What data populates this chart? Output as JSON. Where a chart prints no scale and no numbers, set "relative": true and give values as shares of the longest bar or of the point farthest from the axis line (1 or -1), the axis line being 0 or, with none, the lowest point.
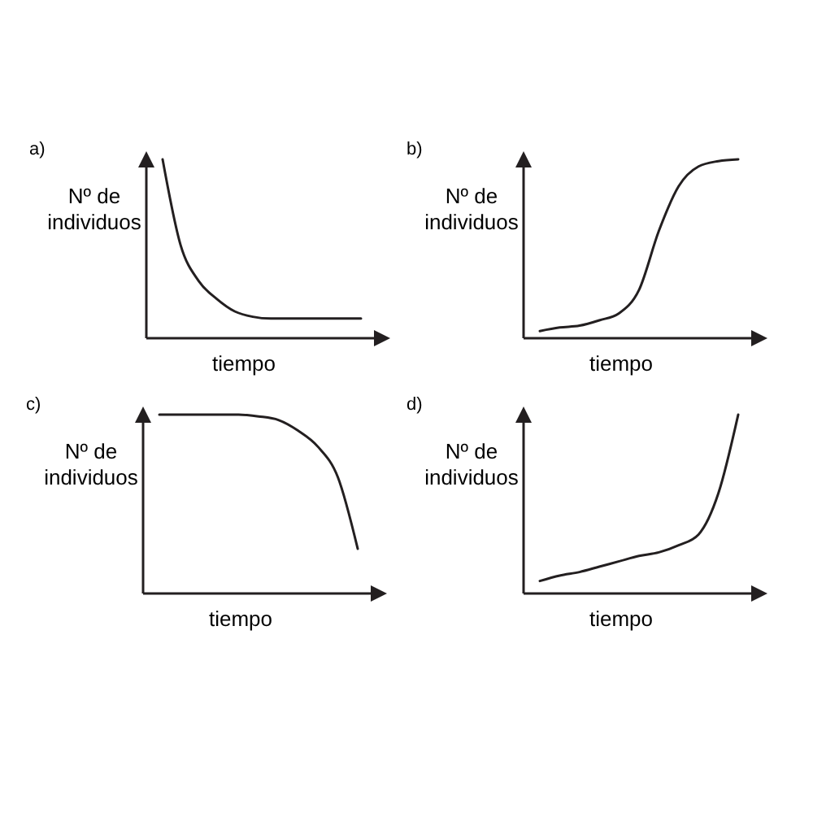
{
  "chart_data": [
    {
      "type": "line",
      "title": "a)",
      "ylabel": "Nº de individuos",
      "xlabel": "tiempo",
      "relative": true,
      "categories": [
        null,
        null,
        null,
        null,
        null,
        null,
        null,
        null,
        null,
        null,
        null,
        null
      ],
      "series": [
        {
          "color": "#231f20",
          "values": [
            1,
            0.52,
            0.32,
            0.22,
            0.15,
            0.12,
            0.11,
            0.11,
            0.11,
            0.11,
            0.11,
            0.11
          ]
        }
      ]
    },
    {
      "type": "line",
      "title": "b)",
      "ylabel": "Nº de individuos",
      "xlabel": "tiempo",
      "relative": true,
      "categories": [
        null,
        null,
        null,
        null,
        null,
        null,
        null,
        null,
        null,
        null,
        null
      ],
      "series": [
        {
          "color": "#231f20",
          "values": [
            0.04,
            0.06,
            0.07,
            0.1,
            0.14,
            0.27,
            0.6,
            0.85,
            0.96,
            0.99,
            1
          ]
        }
      ]
    },
    {
      "type": "line",
      "title": "c)",
      "ylabel": "Nº de individuos",
      "xlabel": "tiempo",
      "relative": true,
      "categories": [
        null,
        null,
        null,
        null,
        null,
        null,
        null,
        null,
        null,
        null,
        null
      ],
      "series": [
        {
          "color": "#231f20",
          "values": [
            1,
            1,
            1,
            1,
            1,
            0.99,
            0.97,
            0.91,
            0.82,
            0.65,
            0.25
          ]
        }
      ]
    },
    {
      "type": "line",
      "title": "d)",
      "ylabel": "Nº de individuos",
      "xlabel": "tiempo",
      "relative": true,
      "categories": [
        null,
        null,
        null,
        null,
        null,
        null,
        null,
        null,
        null,
        null,
        null
      ],
      "series": [
        {
          "color": "#231f20",
          "values": [
            0.07,
            0.1,
            0.12,
            0.15,
            0.18,
            0.21,
            0.23,
            0.27,
            0.33,
            0.56,
            1
          ]
        }
      ]
    }
  ]
}
